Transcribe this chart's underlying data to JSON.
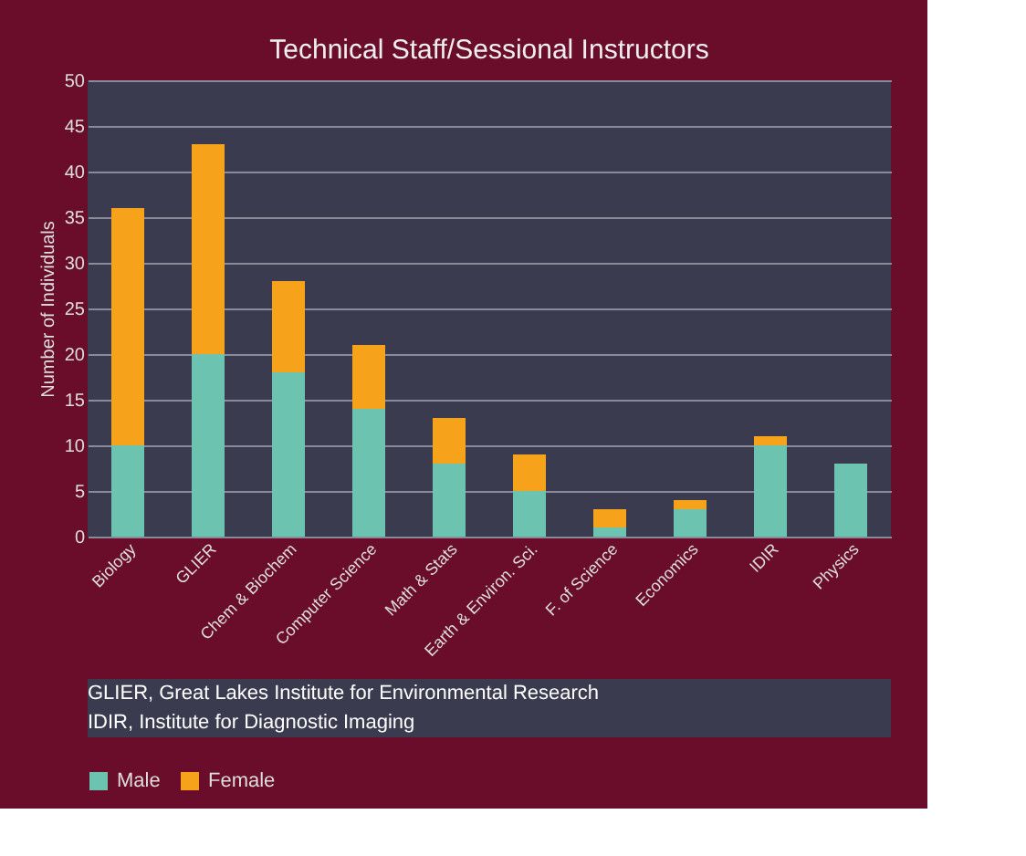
{
  "chart_data": {
    "type": "bar",
    "title": "Technical Staff/Sessional Instructors",
    "ylabel": "Number of Individuals",
    "categories": [
      "Biology",
      "GLIER",
      "Chem & Biochem",
      "Computer Science",
      "Math & Stats",
      "Earth & Environ. Sci.",
      "F. of Science",
      "Economics",
      "IDIR",
      "Physics"
    ],
    "series": [
      {
        "name": "Male",
        "color": "#6cc4b0",
        "values": [
          10,
          20,
          18,
          14,
          8,
          5,
          1,
          3,
          10,
          8
        ]
      },
      {
        "name": "Female",
        "color": "#f7a21b",
        "values": [
          26,
          23,
          10,
          7,
          5,
          4,
          2,
          1,
          1,
          0
        ]
      }
    ],
    "stacked": true,
    "ylim": [
      0,
      50
    ],
    "yticks": [
      0,
      5,
      10,
      15,
      20,
      25,
      30,
      35,
      40,
      45,
      50
    ],
    "grid": "y",
    "legend": "bottom",
    "annotations": [
      "GLIER, Great Lakes Institute for Environmental Research",
      "IDIR, Institute for Diagnostic Imaging"
    ]
  }
}
